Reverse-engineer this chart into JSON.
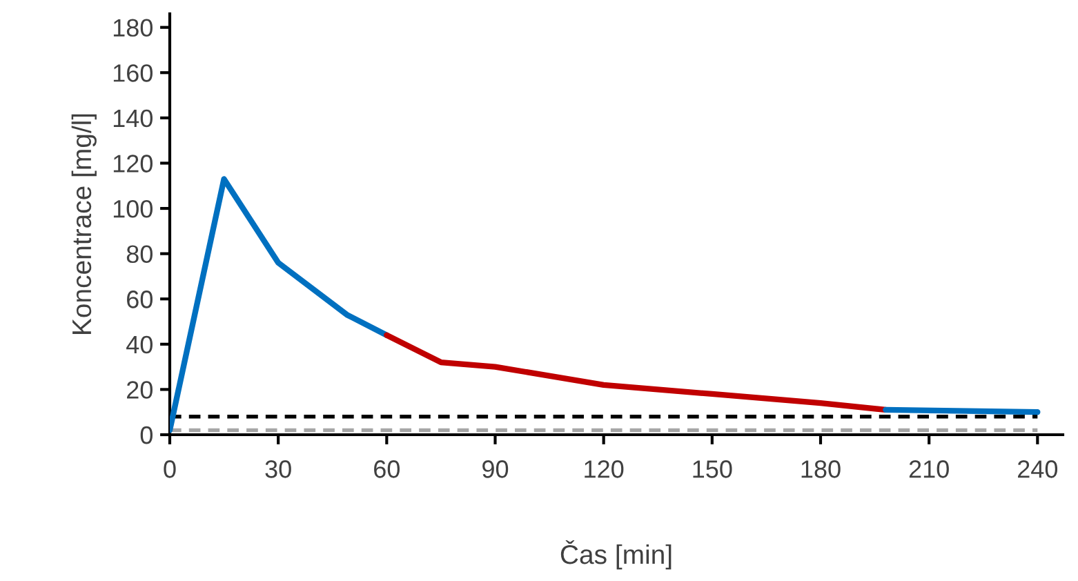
{
  "chart_data": {
    "type": "line",
    "xlabel": "Čas [min]",
    "ylabel": "Koncentrace [mg/l]",
    "series": [
      {
        "color": "#0070c0",
        "x": [
          0,
          15,
          30,
          49,
          60
        ],
        "values": [
          2,
          113,
          76,
          53,
          44
        ]
      },
      {
        "color": "#c00000",
        "x": [
          60,
          75,
          90,
          120,
          150,
          180,
          198
        ],
        "values": [
          44,
          32,
          30,
          22,
          18,
          14,
          11
        ]
      },
      {
        "color": "#0070c0",
        "x": [
          198,
          240
        ],
        "values": [
          11,
          10
        ]
      }
    ],
    "ref_lines": [
      {
        "axis": "y",
        "value": 8,
        "color": "#000000",
        "line_style": "dashed"
      },
      {
        "axis": "y",
        "value": 2,
        "color": "#a6a6a6",
        "line_style": "dashed"
      }
    ],
    "xlim": [
      0,
      247
    ],
    "xticks": [
      0,
      30,
      60,
      90,
      120,
      150,
      180,
      210,
      240
    ],
    "ylim": [
      0,
      186
    ],
    "yticks": [
      0,
      20,
      40,
      60,
      80,
      100,
      120,
      140,
      160,
      180
    ],
    "grid": false,
    "legend": false,
    "marker": "none"
  }
}
